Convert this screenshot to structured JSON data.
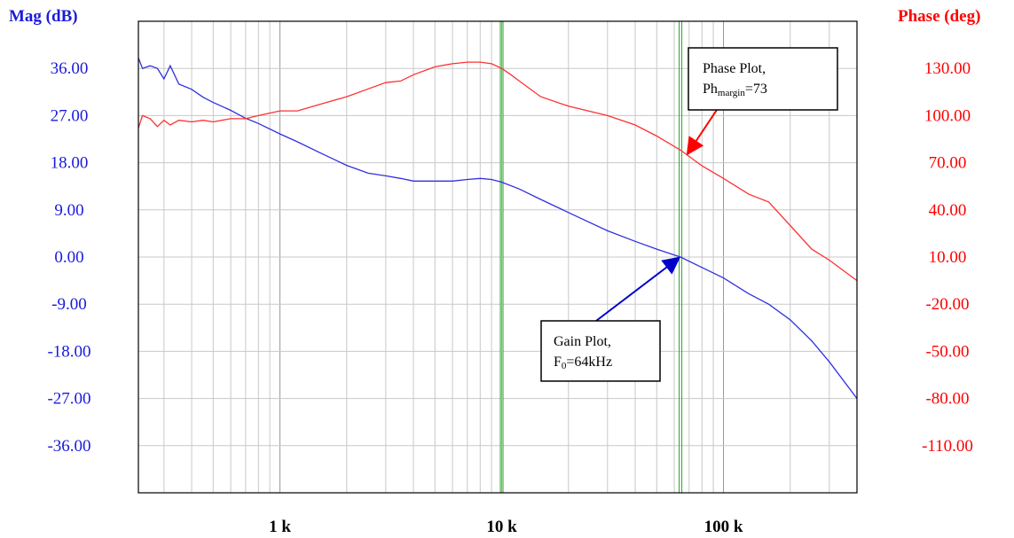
{
  "chart_data": {
    "type": "line",
    "title": "",
    "x_scale": "log",
    "xlim": [
      230,
      400000
    ],
    "x_ticks": [
      {
        "value": 1000,
        "label": "1 k"
      },
      {
        "value": 10000,
        "label": "10 k"
      },
      {
        "value": 100000,
        "label": "100 k"
      }
    ],
    "left_axis": {
      "label": "Mag (dB)",
      "color": "#1a1adc",
      "ylim": [
        -45,
        45
      ],
      "ticks": [
        "36.00",
        "27.00",
        "18.00",
        "9.00",
        "0.00",
        "-9.00",
        "-18.00",
        "-27.00",
        "-36.00"
      ],
      "tick_values": [
        36,
        27,
        18,
        9,
        0,
        -9,
        -18,
        -27,
        -36
      ]
    },
    "right_axis": {
      "label": "Phase (deg)",
      "color": "#ff0000",
      "ylim": [
        -140,
        160
      ],
      "ticks": [
        "130.00",
        "100.00",
        "70.00",
        "40.00",
        "10.00",
        "-20.00",
        "-50.00",
        "-80.00",
        "-110.00"
      ],
      "tick_values": [
        130,
        100,
        70,
        40,
        10,
        -20,
        -50,
        -80,
        -110
      ]
    },
    "grid": true,
    "vertical_markers": [
      10000,
      64000
    ],
    "series": [
      {
        "axis": "left",
        "color": "#3030e0",
        "x": [
          230,
          240,
          260,
          280,
          300,
          320,
          350,
          400,
          450,
          500,
          600,
          700,
          800,
          1000,
          1200,
          1500,
          2000,
          2500,
          3000,
          3500,
          4000,
          5000,
          6000,
          7000,
          8000,
          9000,
          10000,
          12000,
          15000,
          20000,
          30000,
          40000,
          50000,
          64000,
          80000,
          100000,
          130000,
          160000,
          200000,
          250000,
          300000,
          400000
        ],
        "values": [
          38,
          36,
          36.5,
          36,
          34,
          36.5,
          33,
          32,
          30.5,
          29.5,
          28,
          26.5,
          25.5,
          23.5,
          22,
          20,
          17.5,
          16,
          15.5,
          15,
          14.5,
          14.5,
          14.5,
          14.8,
          15,
          14.8,
          14.3,
          13,
          11,
          8.5,
          5,
          3,
          1.5,
          0,
          -2,
          -4,
          -7,
          -9,
          -12,
          -16,
          -20,
          -27
        ]
      },
      {
        "axis": "right",
        "color": "#ff3030",
        "x": [
          230,
          240,
          260,
          280,
          300,
          320,
          350,
          400,
          450,
          500,
          600,
          700,
          800,
          1000,
          1200,
          1500,
          2000,
          2500,
          3000,
          3500,
          4000,
          5000,
          6000,
          7000,
          8000,
          9000,
          10000,
          11000,
          12000,
          15000,
          20000,
          30000,
          40000,
          50000,
          64000,
          80000,
          100000,
          130000,
          160000,
          200000,
          250000,
          300000,
          400000
        ],
        "values": [
          92,
          100,
          98,
          93,
          97,
          94,
          97,
          96,
          97,
          96,
          98,
          98,
          100,
          103,
          103,
          107,
          112,
          117,
          121,
          122,
          126,
          131,
          133,
          134,
          134,
          133,
          130,
          126,
          122,
          112,
          106,
          100,
          94,
          87,
          78,
          68,
          60,
          50,
          45,
          30,
          15,
          8,
          -5
        ]
      }
    ],
    "annotations": [
      {
        "id": "phase",
        "line1": "Phase Plot,",
        "line2_main": "Ph",
        "line2_sub": "margin",
        "line2_tail": "=73"
      },
      {
        "id": "gain",
        "line1": "Gain Plot,",
        "line2_main": "F",
        "line2_sub": "0",
        "line2_tail": "=64kHz"
      }
    ]
  }
}
